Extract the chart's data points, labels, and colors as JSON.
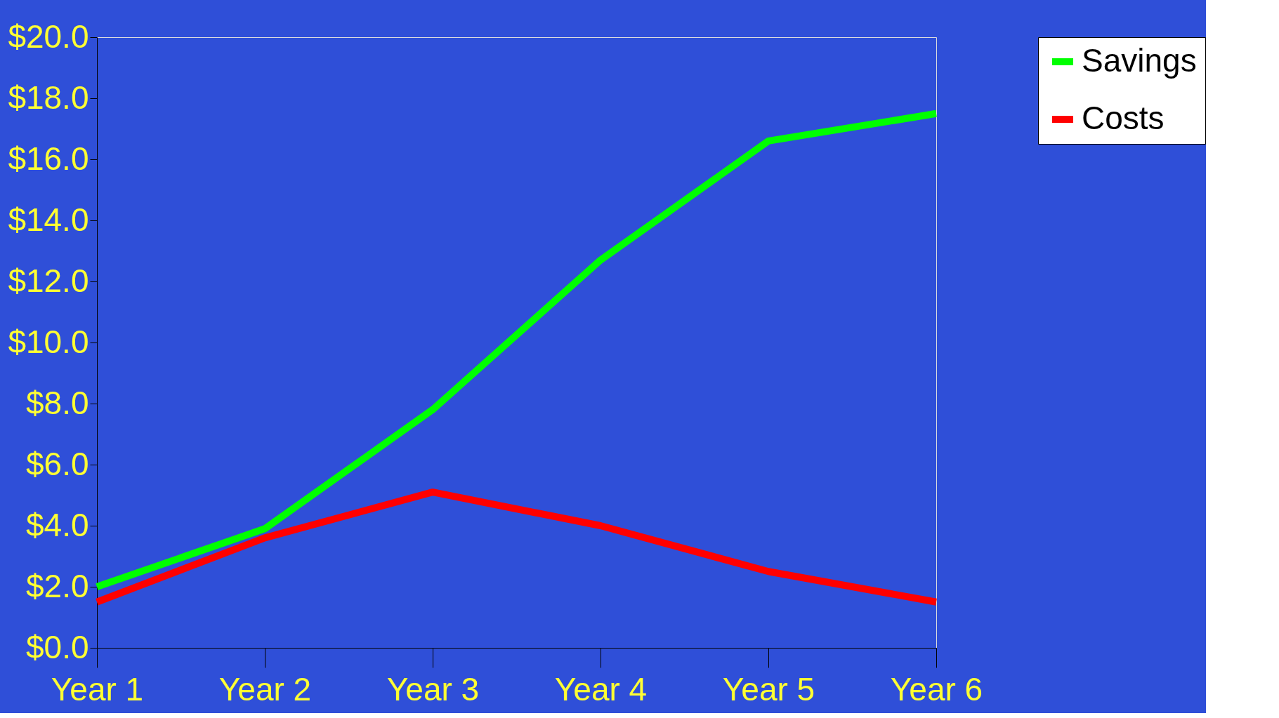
{
  "chart_data": {
    "type": "line",
    "categories": [
      "Year 1",
      "Year 2",
      "Year 3",
      "Year 4",
      "Year 5",
      "Year 6"
    ],
    "series": [
      {
        "name": "Savings",
        "color": "#00ff00",
        "values": [
          2.0,
          3.9,
          7.8,
          12.7,
          16.6,
          17.5
        ]
      },
      {
        "name": "Costs",
        "color": "#ff0000",
        "values": [
          1.5,
          3.6,
          5.1,
          4.0,
          2.5,
          1.5
        ]
      }
    ],
    "ylim": [
      0,
      20
    ],
    "yticks": [
      {
        "value": 0,
        "label": "$0.0"
      },
      {
        "value": 2,
        "label": "$2.0"
      },
      {
        "value": 4,
        "label": "$4.0"
      },
      {
        "value": 6,
        "label": "$6.0"
      },
      {
        "value": 8,
        "label": "$8.0"
      },
      {
        "value": 10,
        "label": "$10.0"
      },
      {
        "value": 12,
        "label": "$12.0"
      },
      {
        "value": 14,
        "label": "$14.0"
      },
      {
        "value": 16,
        "label": "$16.0"
      },
      {
        "value": 18,
        "label": "$18.0"
      },
      {
        "value": 20,
        "label": "$20.0"
      }
    ],
    "grid": false,
    "legend": "right"
  }
}
